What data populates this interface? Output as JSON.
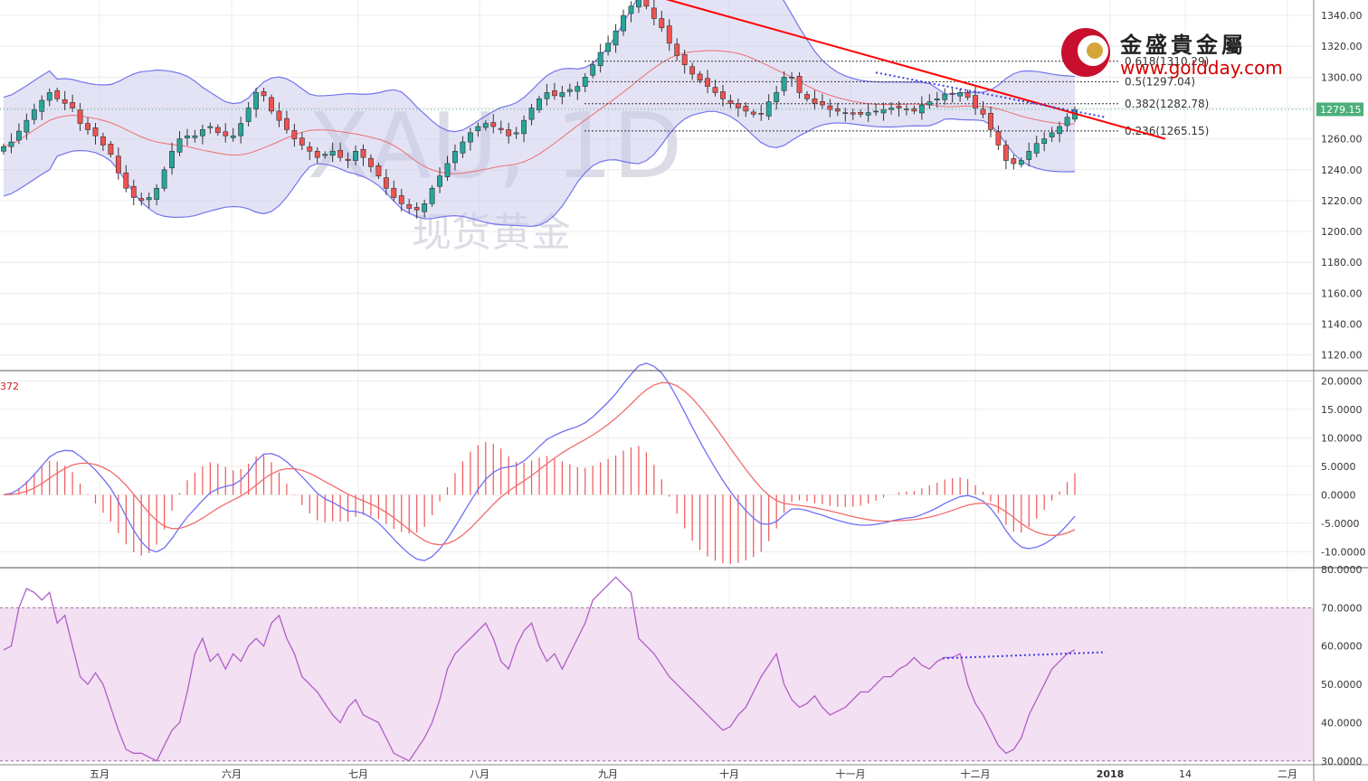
{
  "watermark": {
    "symbol": "XAU, 1D",
    "name": "现货黄金"
  },
  "logo": {
    "title": "金盛貴金屬",
    "url": "www.goldday.com"
  },
  "colors": {
    "up": "#26a69a",
    "down": "#ef5350",
    "band_fill": "#c8c8ec",
    "band_line": "#7474ee",
    "mid_line": "#ee6f6f",
    "trendline": "#ff0000",
    "macd_line": "#6f6ff5",
    "signal_line": "#f26b6b",
    "hist": "#f05555",
    "rsi_line": "#b05ec8",
    "rsi_band": "#f3e0f3",
    "price_tag": "#4caf7a"
  },
  "chart_data": [
    {
      "type": "candlestick",
      "panel": "price",
      "y_ticks": [
        "1340.00",
        "1320.00",
        "1300.00",
        "1280.00",
        "1260.00",
        "1240.00",
        "1220.00",
        "1200.00",
        "1180.00",
        "1160.00",
        "1140.00",
        "1120.00"
      ],
      "y_tick_values": [
        1340,
        1320,
        1300,
        1280,
        1260,
        1240,
        1220,
        1200,
        1180,
        1160,
        1140,
        1120
      ],
      "ylim": [
        1111,
        1350
      ],
      "x_ticks": [
        "五月",
        "六月",
        "七月",
        "八月",
        "九月",
        "十月",
        "十一月",
        "十二月",
        "2018",
        "14",
        "二月"
      ],
      "last_price": "1279.15",
      "fib_levels": [
        {
          "label": "0.618(1310.29)",
          "value": 1310.29
        },
        {
          "label": "0.5(1297.04)",
          "value": 1297.04
        },
        {
          "label": "0.382(1282.78)",
          "value": 1282.78
        },
        {
          "label": "0.236(1265.15)",
          "value": 1265.15
        }
      ],
      "trendline": {
        "from": [
          "九月初",
          1356
        ],
        "to": [
          "2018前",
          1260
        ]
      },
      "series": [
        {
          "name": "close",
          "values": [
            1255,
            1258,
            1265,
            1272,
            1279,
            1285,
            1290,
            1286,
            1283,
            1280,
            1270,
            1266,
            1262,
            1256,
            1250,
            1238,
            1228,
            1222,
            1220,
            1222,
            1228,
            1240,
            1252,
            1260,
            1262,
            1262,
            1266,
            1268,
            1264,
            1262,
            1262,
            1270,
            1280,
            1290,
            1288,
            1278,
            1272,
            1266,
            1260,
            1256,
            1252,
            1248,
            1250,
            1252,
            1248,
            1246,
            1252,
            1248,
            1242,
            1236,
            1228,
            1222,
            1218,
            1215,
            1214,
            1218,
            1228,
            1236,
            1244,
            1252,
            1258,
            1264,
            1268,
            1270,
            1268,
            1266,
            1262,
            1264,
            1272,
            1280,
            1286,
            1290,
            1288,
            1290,
            1292,
            1294,
            1300,
            1308,
            1316,
            1322,
            1330,
            1340,
            1346,
            1352,
            1346,
            1338,
            1332,
            1322,
            1314,
            1308,
            1302,
            1298,
            1294,
            1290,
            1286,
            1283,
            1280,
            1278,
            1276,
            1276,
            1284,
            1290,
            1300,
            1300,
            1290,
            1286,
            1283,
            1282,
            1279,
            1278,
            1277,
            1276,
            1276,
            1277,
            1278,
            1279,
            1280,
            1280,
            1279,
            1278,
            1282,
            1284,
            1286,
            1289,
            1289,
            1290,
            1287,
            1280,
            1276,
            1266,
            1256,
            1246,
            1244,
            1246,
            1252,
            1257,
            1260,
            1264,
            1268,
            1274,
            1279
          ]
        }
      ],
      "bollinger": "20,2"
    },
    {
      "type": "macd",
      "panel": "macd",
      "label": "372",
      "y_ticks": [
        "20.0000",
        "15.0000",
        "10.0000",
        "5.0000",
        "0.0000",
        "-5.0000",
        "-10.0000"
      ],
      "y_tick_values": [
        20,
        15,
        10,
        5,
        0,
        -5,
        -10
      ],
      "ylim": [
        -12.5,
        21.5
      ]
    },
    {
      "type": "line",
      "panel": "rsi",
      "y_ticks": [
        "80.0000",
        "70.0000",
        "60.0000",
        "50.0000",
        "40.0000",
        "30.0000"
      ],
      "y_tick_values": [
        80,
        70,
        60,
        50,
        40,
        30
      ],
      "ylim": [
        29,
        80
      ],
      "band": [
        30,
        70
      ],
      "series": [
        {
          "name": "rsi",
          "values": [
            59,
            60,
            70,
            75,
            74,
            72,
            74,
            66,
            68,
            60,
            52,
            50,
            53,
            50,
            44,
            38,
            33,
            32,
            32,
            31,
            30,
            34,
            38,
            40,
            48,
            58,
            62,
            56,
            58,
            54,
            58,
            56,
            60,
            62,
            60,
            66,
            68,
            62,
            58,
            52,
            50,
            48,
            45,
            42,
            40,
            44,
            46,
            42,
            41,
            40,
            36,
            32,
            31,
            30,
            33,
            36,
            40,
            46,
            54,
            58,
            60,
            62,
            64,
            66,
            62,
            56,
            54,
            60,
            64,
            66,
            60,
            56,
            58,
            54,
            58,
            62,
            66,
            72,
            74,
            76,
            78,
            76,
            74,
            62,
            60,
            58,
            55,
            52,
            50,
            48,
            46,
            44,
            42,
            40,
            38,
            39,
            42,
            44,
            48,
            52,
            55,
            58,
            50,
            46,
            44,
            45,
            47,
            44,
            42,
            43,
            44,
            46,
            48,
            48,
            50,
            52,
            52,
            54,
            55,
            57,
            55,
            54,
            56,
            57,
            57,
            58,
            50,
            45,
            42,
            38,
            34,
            32,
            33,
            36,
            42,
            46,
            50,
            54,
            56,
            58,
            59
          ]
        }
      ]
    }
  ]
}
